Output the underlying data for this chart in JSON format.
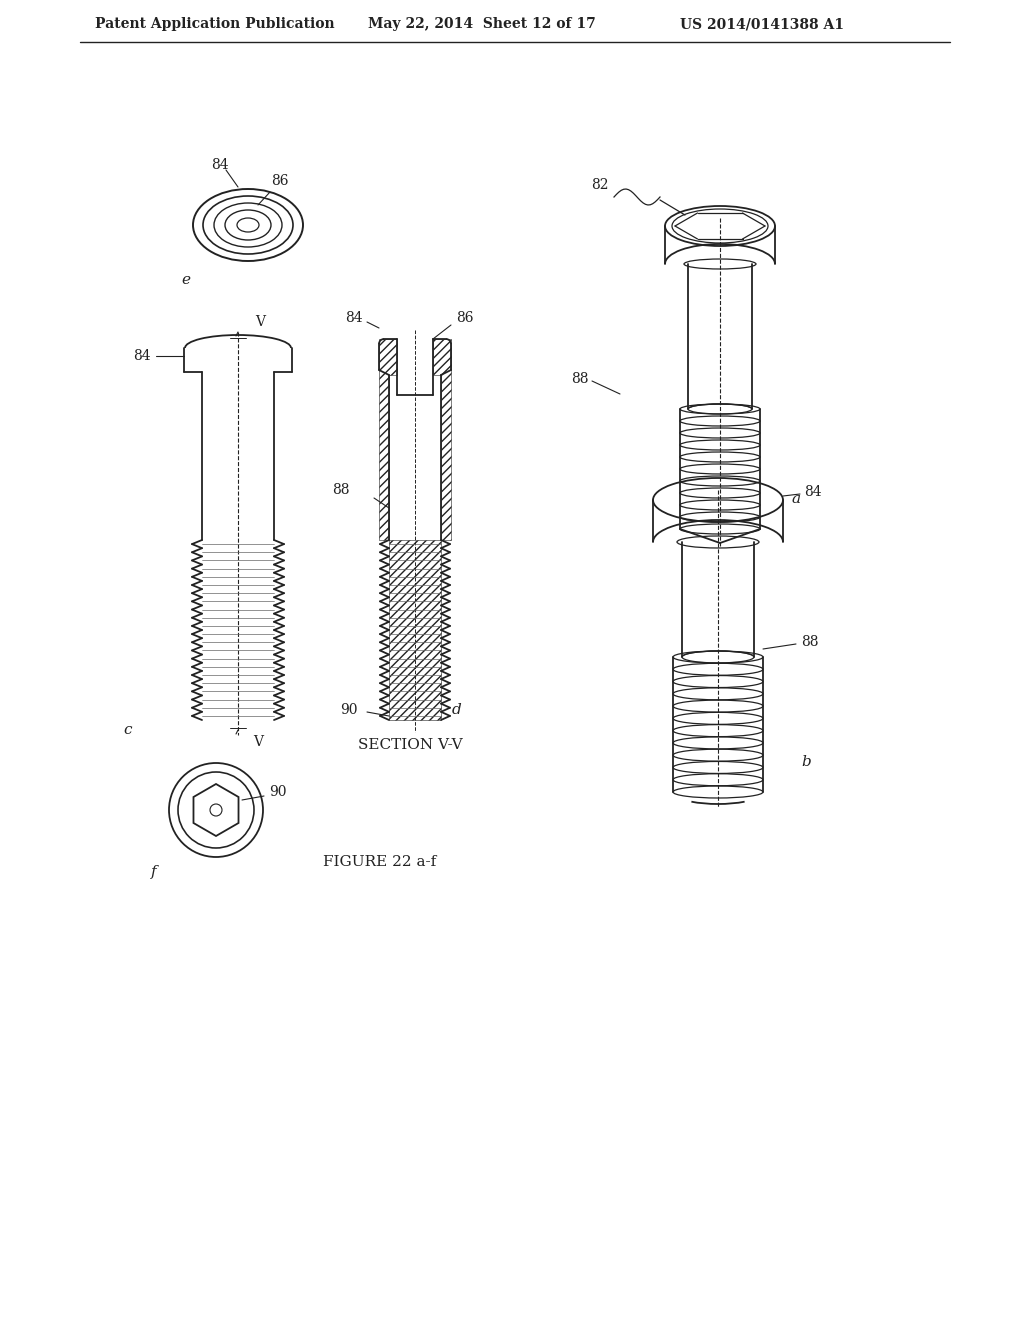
{
  "background_color": "#ffffff",
  "line_color": "#222222",
  "header_text": "Patent Application Publication",
  "header_date": "May 22, 2014  Sheet 12 of 17",
  "header_patent": "US 2014/0141388 A1",
  "figure_caption": "FIGURE 22 a-f",
  "section_label": "SECTION V-V"
}
